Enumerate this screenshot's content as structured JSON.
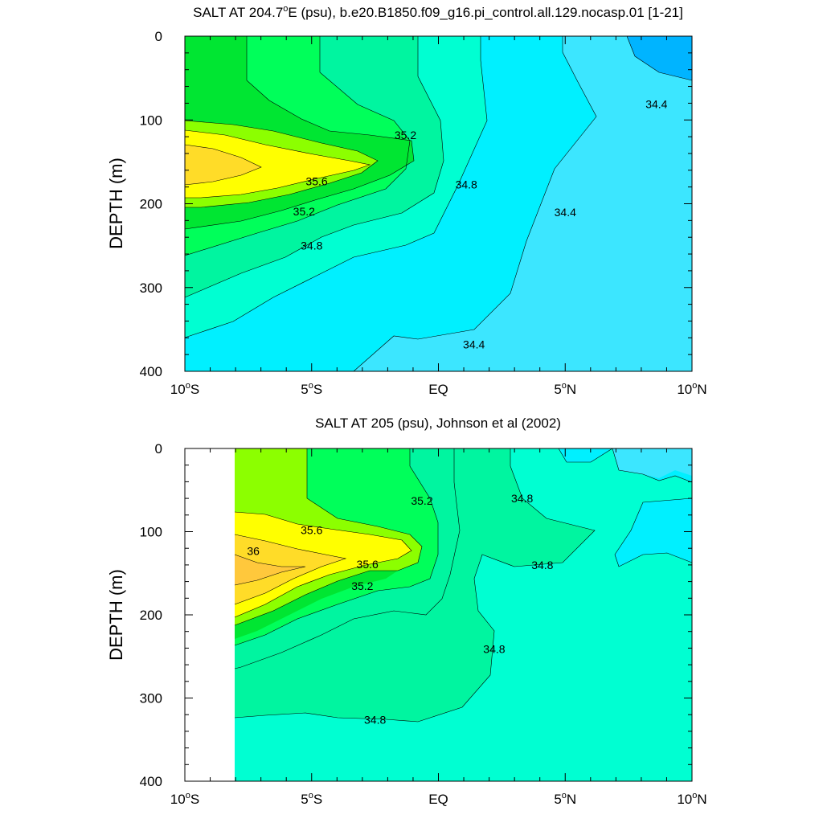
{
  "colors": {
    "s34_0_34_4": "#00f0ff",
    "s34_4_34_6": "#3ce6ff",
    "s34_2_34_4_dark": "#00b4ff",
    "s34_6_34_8": "#00ffd2",
    "s34_8_35_0": "#00f5a0",
    "s35_0_35_2": "#00ff5a",
    "s35_2_35_4": "#00e632",
    "s35_4_35_6": "#8cff00",
    "s35_6_35_8": "#ffff00",
    "s35_8_36_0": "#ffdc28",
    "s36_0_36_2": "#ffc83c",
    "missing": "#ffffff",
    "contour_line": "#000000"
  },
  "chart_data": [
    {
      "type": "heatmap",
      "subtype": "filled-contour",
      "title": "SALT AT 204.7°E (psu), b.e20.B1850.f09_g16.pi_control.all.129.nocasp.01 [1-21]",
      "title_parts": [
        "SALT AT 204.7",
        "o",
        "E (psu), b.e20.B1850.f09_g16.pi_control.all.129.nocasp.01 [1-21]"
      ],
      "xlabel": "",
      "ylabel": "DEPTH (m)",
      "xlim": [
        -10,
        10
      ],
      "ylim": [
        400,
        0
      ],
      "x_ticks": [
        {
          "value": -10,
          "num": "10",
          "hemi": "S"
        },
        {
          "value": -5,
          "num": "5",
          "hemi": "S"
        },
        {
          "value": 0,
          "num": "EQ",
          "hemi": ""
        },
        {
          "value": 5,
          "num": "5",
          "hemi": "N"
        },
        {
          "value": 10,
          "num": "10",
          "hemi": "N"
        }
      ],
      "y_ticks": [
        "0",
        "100",
        "200",
        "300",
        "400"
      ],
      "contour_interval": 0.2,
      "contour_labels": [
        {
          "text": "35.2",
          "x": -1.3,
          "y": 118
        },
        {
          "text": "35.6",
          "x": -4.8,
          "y": 173
        },
        {
          "text": "34.8",
          "x": 1.1,
          "y": 177
        },
        {
          "text": "35.2",
          "x": -5.3,
          "y": 209
        },
        {
          "text": "34.4",
          "x": 5.0,
          "y": 210
        },
        {
          "text": "34.8",
          "x": -5.0,
          "y": 250
        },
        {
          "text": "34.4",
          "x": 1.4,
          "y": 368
        },
        {
          "text": "34.4",
          "x": 8.6,
          "y": 81
        }
      ]
    },
    {
      "type": "heatmap",
      "subtype": "filled-contour",
      "title": "SALT AT 205 (psu), Johnson et al (2002)",
      "xlabel": "",
      "ylabel": "DEPTH (m)",
      "xlim": [
        -10,
        10
      ],
      "ylim": [
        400,
        0
      ],
      "missing_data_x_range": [
        -10,
        -8
      ],
      "x_ticks": [
        {
          "value": -10,
          "num": "10",
          "hemi": "S"
        },
        {
          "value": -5,
          "num": "5",
          "hemi": "S"
        },
        {
          "value": 0,
          "num": "EQ",
          "hemi": ""
        },
        {
          "value": 5,
          "num": "5",
          "hemi": "N"
        },
        {
          "value": 10,
          "num": "10",
          "hemi": "N"
        }
      ],
      "y_ticks": [
        "0",
        "100",
        "200",
        "300",
        "400"
      ],
      "contour_interval": 0.2,
      "contour_labels": [
        {
          "text": "35.2",
          "x": -0.65,
          "y": 63
        },
        {
          "text": "34.8",
          "x": 3.3,
          "y": 60
        },
        {
          "text": "35.6",
          "x": -5.0,
          "y": 98
        },
        {
          "text": "36",
          "x": -7.3,
          "y": 123
        },
        {
          "text": "35.6",
          "x": -2.8,
          "y": 139
        },
        {
          "text": "34.8",
          "x": 4.1,
          "y": 140
        },
        {
          "text": "35.2",
          "x": -3.0,
          "y": 165
        },
        {
          "text": "34.8",
          "x": 2.2,
          "y": 241
        },
        {
          "text": "34.8",
          "x": -2.5,
          "y": 326
        }
      ]
    }
  ]
}
